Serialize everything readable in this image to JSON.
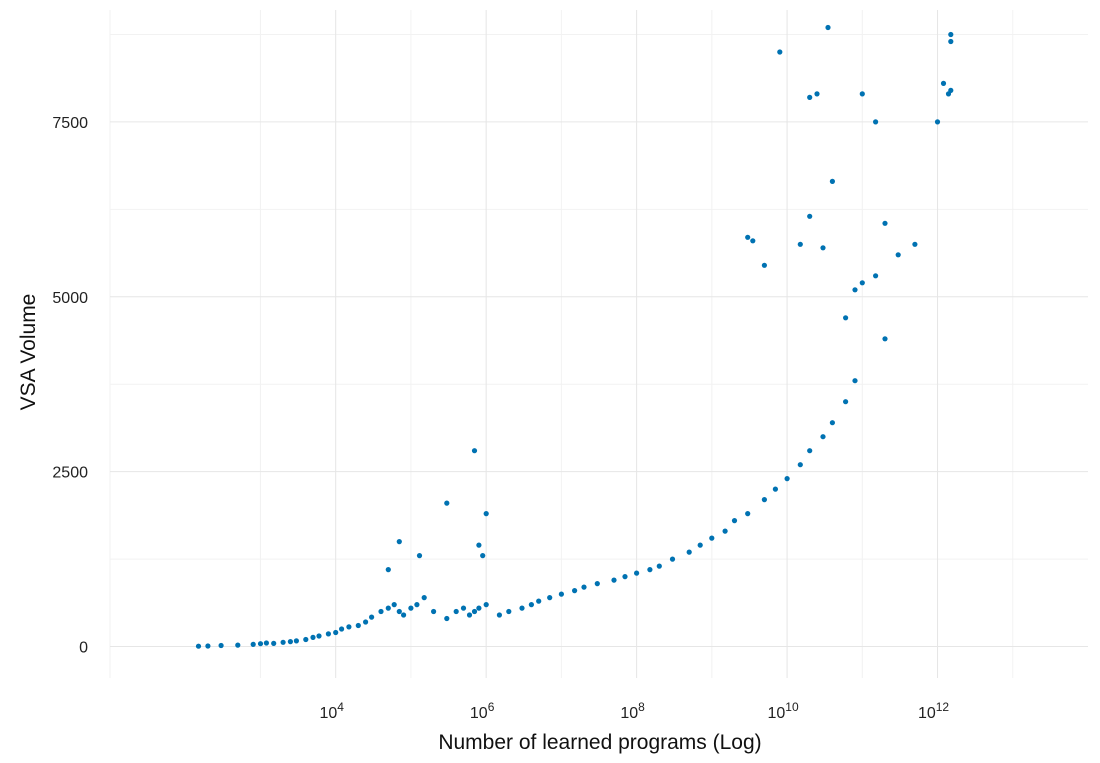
{
  "chart_data": {
    "type": "scatter",
    "xlabel": "Number of learned programs (Log)",
    "ylabel": "VSA Volume",
    "x_scale": "log10",
    "xlim": [
      10,
      100000000000000
    ],
    "ylim": [
      -450,
      9100
    ],
    "x_ticks": [
      {
        "value": 10000,
        "base": "10",
        "exp": "4"
      },
      {
        "value": 1000000,
        "base": "10",
        "exp": "6"
      },
      {
        "value": 100000000,
        "base": "10",
        "exp": "8"
      },
      {
        "value": 10000000000,
        "base": "10",
        "exp": "10"
      },
      {
        "value": 1000000000000,
        "base": "10",
        "exp": "12"
      }
    ],
    "y_ticks": [
      {
        "value": 0,
        "label": "0"
      },
      {
        "value": 2500,
        "label": "2500"
      },
      {
        "value": 5000,
        "label": "5000"
      },
      {
        "value": 7500,
        "label": "7500"
      }
    ],
    "grid": true,
    "point_color": "#0072B2",
    "series": [
      {
        "points": [
          [
            150,
            5
          ],
          [
            200,
            8
          ],
          [
            300,
            15
          ],
          [
            500,
            20
          ],
          [
            800,
            30
          ],
          [
            1000,
            40
          ],
          [
            1200,
            50
          ],
          [
            1500,
            45
          ],
          [
            2000,
            60
          ],
          [
            2500,
            70
          ],
          [
            3000,
            80
          ],
          [
            4000,
            100
          ],
          [
            5000,
            130
          ],
          [
            6000,
            150
          ],
          [
            8000,
            180
          ],
          [
            10000,
            200
          ],
          [
            12000,
            250
          ],
          [
            15000,
            280
          ],
          [
            20000,
            300
          ],
          [
            25000,
            350
          ],
          [
            30000,
            420
          ],
          [
            40000,
            500
          ],
          [
            50000,
            550
          ],
          [
            60000,
            600
          ],
          [
            70000,
            500
          ],
          [
            80000,
            450
          ],
          [
            100000,
            550
          ],
          [
            120000,
            600
          ],
          [
            150000,
            700
          ],
          [
            200000,
            500
          ],
          [
            300000,
            400
          ],
          [
            400000,
            500
          ],
          [
            500000,
            550
          ],
          [
            600000,
            450
          ],
          [
            700000,
            500
          ],
          [
            800000,
            550
          ],
          [
            1000000,
            600
          ],
          [
            1500000,
            450
          ],
          [
            2000000,
            500
          ],
          [
            3000000,
            550
          ],
          [
            4000000,
            600
          ],
          [
            5000000,
            650
          ],
          [
            7000000,
            700
          ],
          [
            10000000,
            750
          ],
          [
            15000000,
            800
          ],
          [
            20000000,
            850
          ],
          [
            30000000,
            900
          ],
          [
            50000000,
            950
          ],
          [
            70000000,
            1000
          ],
          [
            100000000,
            1050
          ],
          [
            150000000,
            1100
          ],
          [
            200000000,
            1150
          ],
          [
            300000000,
            1250
          ],
          [
            500000000,
            1350
          ],
          [
            700000000,
            1450
          ],
          [
            1000000000,
            1550
          ],
          [
            1500000000,
            1650
          ],
          [
            2000000000,
            1800
          ],
          [
            3000000000,
            1900
          ],
          [
            5000000000,
            2100
          ],
          [
            7000000000,
            2250
          ],
          [
            10000000000,
            2400
          ],
          [
            15000000000,
            2600
          ],
          [
            20000000000,
            2800
          ],
          [
            30000000000,
            3000
          ],
          [
            40000000000,
            3200
          ],
          [
            60000000000,
            3500
          ],
          [
            80000000000,
            3800
          ],
          [
            70000,
            1500
          ],
          [
            50000,
            1100
          ],
          [
            130000,
            1300
          ],
          [
            300000,
            2050
          ],
          [
            700000,
            2800
          ],
          [
            800000,
            1450
          ],
          [
            1000000,
            1900
          ],
          [
            900000,
            1300
          ],
          [
            3000000000,
            5850
          ],
          [
            3500000000,
            5800
          ],
          [
            5000000000,
            5450
          ],
          [
            8000000000,
            8500
          ],
          [
            20000000000,
            7850
          ],
          [
            25000000000,
            7900
          ],
          [
            35000000000,
            8850
          ],
          [
            40000000000,
            6650
          ],
          [
            30000000000,
            5700
          ],
          [
            20000000000,
            6150
          ],
          [
            15000000000,
            5750
          ],
          [
            100000000000,
            7900
          ],
          [
            150000000000,
            7500
          ],
          [
            200000000000,
            6050
          ],
          [
            300000000000,
            5600
          ],
          [
            500000000000,
            5750
          ],
          [
            1000000000000,
            7500
          ],
          [
            1200000000000,
            8050
          ],
          [
            1400000000000,
            7900
          ],
          [
            1500000000000,
            8650
          ],
          [
            1500000000000,
            8750
          ],
          [
            1500000000000,
            7950
          ],
          [
            100000000000,
            5200
          ],
          [
            150000000000,
            5300
          ],
          [
            200000000000,
            4400
          ],
          [
            80000000000,
            5100
          ],
          [
            60000000000,
            4700
          ]
        ]
      }
    ]
  }
}
